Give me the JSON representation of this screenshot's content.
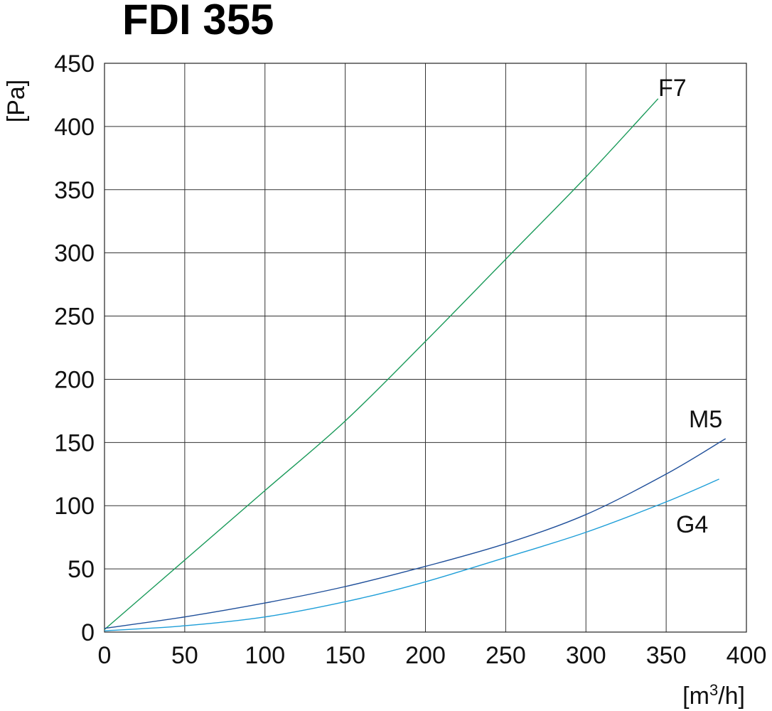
{
  "title": "FDI 355",
  "chart_data": {
    "type": "line",
    "title": "FDI 355",
    "xlabel": "[m3/h]",
    "xlabel_base": "[m",
    "xlabel_sup": "3",
    "xlabel_tail": "/h]",
    "ylabel": "[Pa]",
    "xlim": [
      0,
      400
    ],
    "ylim": [
      0,
      450
    ],
    "xticks": [
      0,
      50,
      100,
      150,
      200,
      250,
      300,
      350,
      400
    ],
    "yticks": [
      0,
      50,
      100,
      150,
      200,
      250,
      300,
      350,
      400,
      450
    ],
    "grid": true,
    "series": [
      {
        "name": "F7",
        "color": "#1a9a5a",
        "points": [
          [
            0,
            2
          ],
          [
            50,
            57
          ],
          [
            100,
            112
          ],
          [
            150,
            167
          ],
          [
            200,
            230
          ],
          [
            250,
            295
          ],
          [
            300,
            360
          ],
          [
            345,
            422
          ]
        ]
      },
      {
        "name": "M5",
        "color": "#1f4f9a",
        "points": [
          [
            0,
            3
          ],
          [
            50,
            12
          ],
          [
            100,
            23
          ],
          [
            150,
            36
          ],
          [
            200,
            52
          ],
          [
            250,
            70
          ],
          [
            300,
            93
          ],
          [
            350,
            125
          ],
          [
            387,
            153
          ]
        ]
      },
      {
        "name": "G4",
        "color": "#1e9ed8",
        "points": [
          [
            0,
            1
          ],
          [
            50,
            5
          ],
          [
            100,
            12
          ],
          [
            150,
            24
          ],
          [
            195,
            38
          ],
          [
            250,
            59
          ],
          [
            300,
            79
          ],
          [
            350,
            103
          ],
          [
            383,
            121
          ]
        ]
      }
    ]
  }
}
